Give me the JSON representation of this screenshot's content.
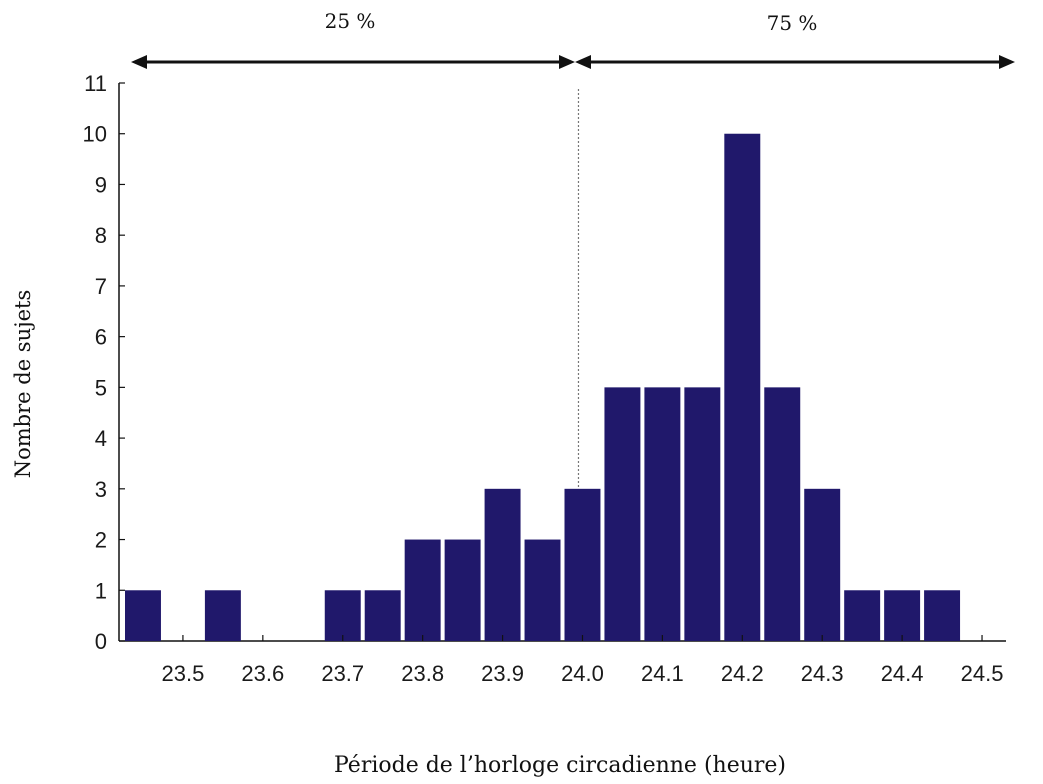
{
  "chart_data": {
    "type": "bar",
    "title": "",
    "xlabel": "Période de l’horloge circadienne (heure)",
    "ylabel": "Nombre de sujets",
    "x_tick_labels": [
      "23.5",
      "23.6",
      "23.7",
      "23.8",
      "23.9",
      "24.0",
      "24.1",
      "24.2",
      "24.3",
      "24.4",
      "24.5"
    ],
    "y_tick_labels": [
      "0",
      "1",
      "2",
      "3",
      "4",
      "5",
      "6",
      "7",
      "8",
      "9",
      "10",
      "11"
    ],
    "xlim": [
      23.42,
      24.53
    ],
    "ylim": [
      0,
      11
    ],
    "bar_width": 0.045,
    "bars": [
      {
        "x": 23.45,
        "value": 1
      },
      {
        "x": 23.55,
        "value": 1
      },
      {
        "x": 23.7,
        "value": 1
      },
      {
        "x": 23.75,
        "value": 1
      },
      {
        "x": 23.8,
        "value": 2
      },
      {
        "x": 23.85,
        "value": 2
      },
      {
        "x": 23.9,
        "value": 3
      },
      {
        "x": 23.95,
        "value": 2
      },
      {
        "x": 24.0,
        "value": 3
      },
      {
        "x": 24.05,
        "value": 5
      },
      {
        "x": 24.1,
        "value": 5
      },
      {
        "x": 24.15,
        "value": 5
      },
      {
        "x": 24.2,
        "value": 10
      },
      {
        "x": 24.25,
        "value": 5
      },
      {
        "x": 24.3,
        "value": 3
      },
      {
        "x": 24.35,
        "value": 1
      },
      {
        "x": 24.4,
        "value": 1
      },
      {
        "x": 24.45,
        "value": 1
      }
    ],
    "divider_x": 23.995,
    "annotations": {
      "left_label": "25 %",
      "right_label": "75 %"
    },
    "grid": false,
    "colors": {
      "bar": "#20186b",
      "axis": "#111111",
      "divider": "#777777"
    }
  }
}
